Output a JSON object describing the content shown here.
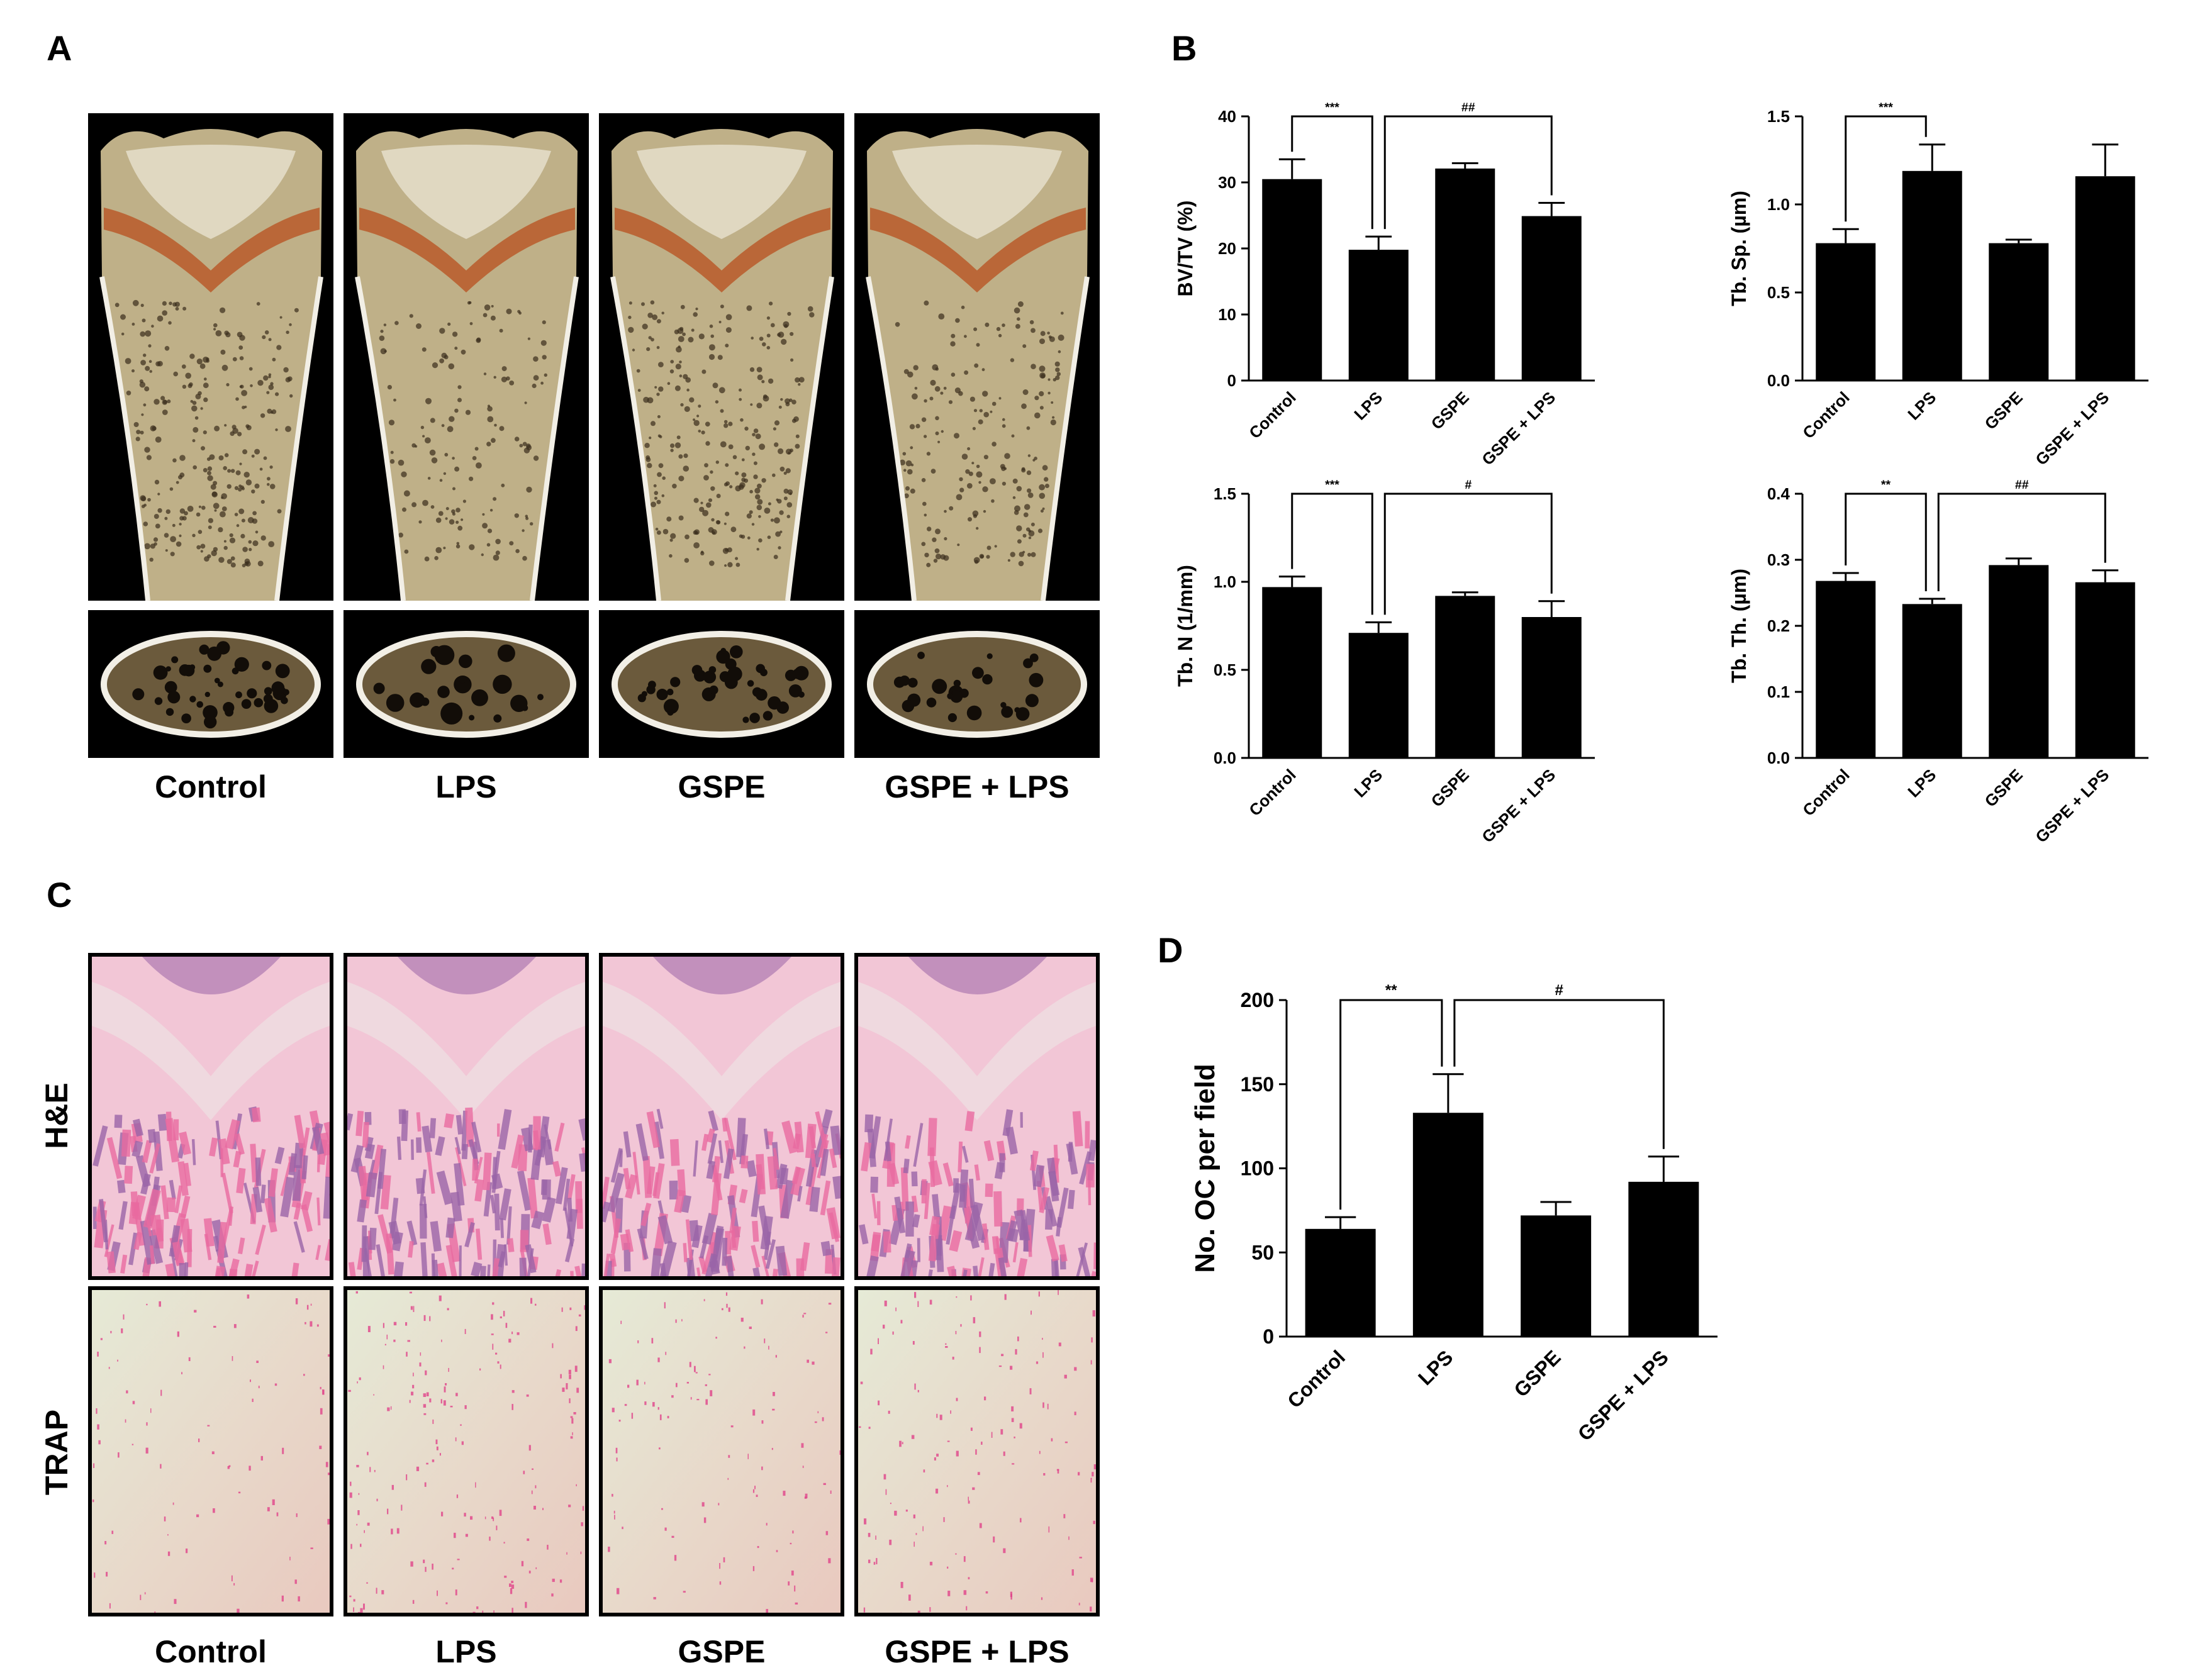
{
  "figure": {
    "panels": {
      "a": "A",
      "b": "B",
      "c": "C",
      "d": "D"
    },
    "groups": [
      "Control",
      "LPS",
      "GSPE",
      "GSPE + LPS"
    ],
    "histology_rows": {
      "he": "H&E",
      "trap": "TRAP"
    }
  },
  "colors": {
    "bar": "#000000",
    "bone": "#c9b98f",
    "growth_plate": "#b85a2a",
    "he_pink": "#e86aa0",
    "he_purple": "#9a64a8",
    "trap_bg": "#e9e4cf",
    "trap_stain": "#e0448a"
  },
  "chart_data": [
    {
      "id": "bvtv",
      "type": "bar",
      "categories": [
        "Control",
        "LPS",
        "GSPE",
        "GSPE + LPS"
      ],
      "values": [
        30.5,
        19.8,
        32.1,
        24.9
      ],
      "errors": [
        3.0,
        2.0,
        0.8,
        2.0
      ],
      "ylabel": "BV/TV (%)",
      "ylim": [
        0,
        40
      ],
      "yticks": [
        "0",
        "10",
        "20",
        "30",
        "40"
      ],
      "yticks_values": [
        0,
        10,
        20,
        30,
        40
      ],
      "brackets": [
        {
          "from": 0,
          "to": 1,
          "label": "***"
        },
        {
          "from": 1,
          "to": 3,
          "label": "##"
        }
      ]
    },
    {
      "id": "tbsp",
      "type": "bar",
      "categories": [
        "Control",
        "LPS",
        "GSPE",
        "GSPE + LPS"
      ],
      "values": [
        0.78,
        1.19,
        0.78,
        1.16
      ],
      "errors": [
        0.08,
        0.15,
        0.02,
        0.18
      ],
      "ylabel": "Tb. Sp. (µm)",
      "ylim": [
        0,
        1.5
      ],
      "yticks": [
        "0.0",
        "0.5",
        "1.0",
        "1.5"
      ],
      "yticks_values": [
        0,
        0.5,
        1.0,
        1.5
      ],
      "brackets": [
        {
          "from": 0,
          "to": 1,
          "label": "***"
        }
      ]
    },
    {
      "id": "tbn",
      "type": "bar",
      "categories": [
        "Control",
        "LPS",
        "GSPE",
        "GSPE + LPS"
      ],
      "values": [
        0.97,
        0.71,
        0.92,
        0.8
      ],
      "errors": [
        0.06,
        0.06,
        0.02,
        0.09
      ],
      "ylabel": "Tb. N (1/mm)",
      "ylim": [
        0,
        1.5
      ],
      "yticks": [
        "0.0",
        "0.5",
        "1.0",
        "1.5"
      ],
      "yticks_values": [
        0,
        0.5,
        1.0,
        1.5
      ],
      "brackets": [
        {
          "from": 0,
          "to": 1,
          "label": "***"
        },
        {
          "from": 1,
          "to": 3,
          "label": "#"
        }
      ]
    },
    {
      "id": "tbth",
      "type": "bar",
      "categories": [
        "Control",
        "LPS",
        "GSPE",
        "GSPE + LPS"
      ],
      "values": [
        0.268,
        0.233,
        0.292,
        0.266
      ],
      "errors": [
        0.012,
        0.008,
        0.01,
        0.018
      ],
      "ylabel": "Tb. Th. (µm)",
      "ylim": [
        0,
        0.4
      ],
      "yticks": [
        "0.0",
        "0.1",
        "0.2",
        "0.3",
        "0.4"
      ],
      "yticks_values": [
        0,
        0.1,
        0.2,
        0.3,
        0.4
      ],
      "brackets": [
        {
          "from": 0,
          "to": 1,
          "label": "**"
        },
        {
          "from": 1,
          "to": 3,
          "label": "##"
        }
      ]
    },
    {
      "id": "noc",
      "type": "bar",
      "categories": [
        "Control",
        "LPS",
        "GSPE",
        "GSPE + LPS"
      ],
      "values": [
        64,
        133,
        72,
        92
      ],
      "errors": [
        7,
        23,
        8,
        15
      ],
      "ylabel": "No. OC per field",
      "ylim": [
        0,
        200
      ],
      "yticks": [
        "0",
        "50",
        "100",
        "150",
        "200"
      ],
      "yticks_values": [
        0,
        50,
        100,
        150,
        200
      ],
      "brackets": [
        {
          "from": 0,
          "to": 1,
          "label": "**"
        },
        {
          "from": 1,
          "to": 3,
          "label": "#"
        }
      ]
    }
  ]
}
